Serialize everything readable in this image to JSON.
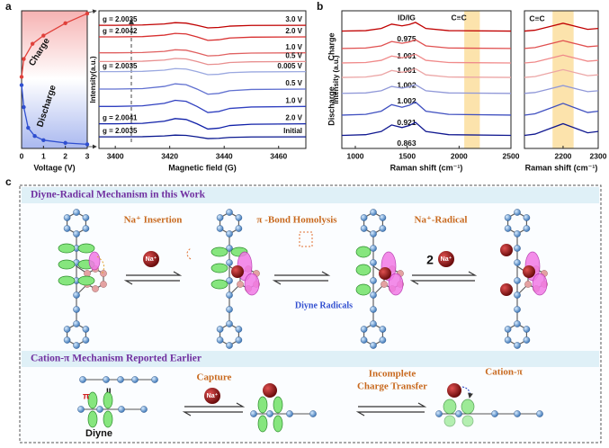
{
  "panel_labels": [
    "a",
    "b"
  ],
  "chart_data": [
    {
      "type": "line",
      "xlabel": "Voltage (V)",
      "xlim": [
        0,
        3
      ],
      "xticks": [
        0,
        1,
        2,
        3
      ],
      "ylim": [
        0,
        10
      ],
      "series": [
        {
          "name": "Charge",
          "color": "#e0403a",
          "x": [
            0,
            0.1,
            0.5,
            1,
            2,
            3
          ],
          "values": [
            5.2,
            6.5,
            7.6,
            8.2,
            9.1,
            9.8
          ]
        },
        {
          "name": "Discharge",
          "color": "#2f4fd0",
          "x": [
            0,
            0.1,
            0.3,
            0.6,
            1,
            2,
            3
          ],
          "values": [
            4.6,
            3.0,
            1.5,
            0.9,
            0.6,
            0.4,
            0.3
          ]
        }
      ]
    },
    {
      "type": "line",
      "xlabel": "Magnetic field (G)",
      "ylabel": "Intensity(a.u.)",
      "xlim": [
        3394,
        3470
      ],
      "xticks": [
        3400,
        3420,
        3440,
        3460
      ],
      "ylim": [
        0.5,
        10
      ],
      "x": [
        3394,
        3400,
        3410,
        3418,
        3422,
        3426,
        3430,
        3434,
        3438,
        3442,
        3450,
        3470
      ],
      "annotations": [
        "g = 2.0035",
        "g = 2.0042",
        "g = 2.0035",
        "g = 2.0041",
        "g = 2.0035"
      ],
      "series": [
        {
          "name": "3.0 V",
          "color": "#c00000",
          "values": [
            9,
            9,
            9.02,
            9.09,
            9.18,
            9.15,
            9,
            8.82,
            8.85,
            8.94,
            8.99,
            9
          ]
        },
        {
          "name": "2.0 V",
          "color": "#d83030",
          "values": [
            8.2,
            8.2,
            8.22,
            8.32,
            8.44,
            8.4,
            8.2,
            7.96,
            8,
            8.12,
            8.18,
            8.2
          ]
        },
        {
          "name": "1.0 V",
          "color": "#e06060",
          "values": [
            7.1,
            7.1,
            7.12,
            7.2,
            7.31,
            7.28,
            7.1,
            6.89,
            6.92,
            7.03,
            7.08,
            7.1
          ]
        },
        {
          "name": "0.5 V",
          "color": "#e89090",
          "values": [
            6.5,
            6.5,
            6.52,
            6.6,
            6.71,
            6.68,
            6.5,
            6.29,
            6.32,
            6.43,
            6.48,
            6.5
          ]
        },
        {
          "name": "0.005 V",
          "color": "#9aa8e0",
          "values": [
            5.8,
            5.8,
            5.82,
            5.9,
            6.01,
            5.98,
            5.8,
            5.59,
            5.62,
            5.73,
            5.78,
            5.8
          ]
        },
        {
          "name": "0.5 V",
          "color": "#6070d0",
          "values": [
            4.6,
            4.6,
            4.63,
            4.78,
            4.96,
            4.9,
            4.6,
            4.24,
            4.3,
            4.48,
            4.57,
            4.6
          ]
        },
        {
          "name": "1.0 V",
          "color": "#3040c0",
          "values": [
            3.4,
            3.4,
            3.44,
            3.61,
            3.82,
            3.75,
            3.4,
            2.98,
            3.05,
            3.26,
            3.36,
            3.4
          ]
        },
        {
          "name": "2.0 V",
          "color": "#1020a8",
          "values": [
            2.2,
            2.2,
            2.23,
            2.38,
            2.56,
            2.5,
            2.2,
            1.84,
            1.9,
            2.08,
            2.17,
            2.2
          ]
        },
        {
          "name": "Initial",
          "color": "#0a1890",
          "values": [
            1.3,
            1.3,
            1.31,
            1.36,
            1.42,
            1.4,
            1.3,
            1.18,
            1.2,
            1.26,
            1.29,
            1.3
          ]
        }
      ]
    },
    {
      "type": "line",
      "xlabel": "Raman shift (cm⁻¹)",
      "ylabel": "Intensity (a.u.)",
      "header": "ID/IG",
      "band_label": "C≡C",
      "groups": [
        "Charge",
        "Discharge"
      ],
      "xlim": [
        870,
        2500
      ],
      "xticks": [
        1000,
        1500,
        2000,
        2500
      ],
      "ylim": [
        0.5,
        10
      ],
      "band": [
        2050,
        2200
      ],
      "x": [
        870,
        1100,
        1250,
        1350,
        1450,
        1520,
        1580,
        1680,
        1900,
        2500
      ],
      "series": [
        {
          "name": "0.975",
          "color": "#c00000",
          "values": [
            8.6,
            8.63,
            8.78,
            9.08,
            8.96,
            9.05,
            9.2,
            8.78,
            8.63,
            8.6
          ]
        },
        {
          "name": "1.001",
          "color": "#e05050",
          "values": [
            7.4,
            7.43,
            7.58,
            7.88,
            7.76,
            7.85,
            8,
            7.58,
            7.43,
            7.4
          ]
        },
        {
          "name": "1.001",
          "color": "#f08a8a",
          "values": [
            6.4,
            6.43,
            6.58,
            6.88,
            6.76,
            6.85,
            7,
            6.58,
            6.43,
            6.4
          ]
        },
        {
          "name": "1.002",
          "color": "#eca6a6",
          "values": [
            5.4,
            5.43,
            5.58,
            5.88,
            5.76,
            5.85,
            6,
            5.58,
            5.43,
            5.4
          ]
        },
        {
          "name": "1.002",
          "color": "#9098d8",
          "values": [
            4.3,
            4.33,
            4.48,
            4.78,
            4.66,
            4.75,
            4.9,
            4.48,
            4.33,
            4.3
          ]
        },
        {
          "name": "0.921",
          "color": "#4050c0",
          "values": [
            2.8,
            2.85,
            3.07,
            3.52,
            3.34,
            3.48,
            3.7,
            3.07,
            2.85,
            2.8
          ]
        },
        {
          "name": "0.863",
          "color": "#101890",
          "values": [
            1.4,
            1.45,
            1.67,
            2.12,
            1.94,
            2.08,
            2.3,
            1.67,
            1.45,
            1.4
          ]
        }
      ]
    },
    {
      "type": "line",
      "title": "C≡C",
      "xlabel": "Raman shift (cm⁻¹)",
      "xlim": [
        2090,
        2300
      ],
      "xticks": [
        2200,
        2300
      ],
      "ylim": [
        0.5,
        10
      ],
      "band": [
        2170,
        2230
      ],
      "x": [
        2090,
        2120,
        2160,
        2200,
        2240,
        2270,
        2300
      ],
      "series": [
        {
          "color": "#c00000",
          "values": [
            8.6,
            8.66,
            8.9,
            9.14,
            8.9,
            8.72,
            8.78
          ]
        },
        {
          "color": "#e05050",
          "values": [
            7.4,
            7.46,
            7.7,
            7.94,
            7.7,
            7.52,
            7.58
          ]
        },
        {
          "color": "#f08a8a",
          "values": [
            6.4,
            6.46,
            6.7,
            6.94,
            6.7,
            6.52,
            6.58
          ]
        },
        {
          "color": "#eca6a6",
          "values": [
            5.4,
            5.46,
            5.7,
            5.94,
            5.7,
            5.52,
            5.58
          ]
        },
        {
          "color": "#9098d8",
          "values": [
            4.3,
            4.36,
            4.6,
            4.84,
            4.6,
            4.42,
            4.48
          ]
        },
        {
          "color": "#4050c0",
          "values": [
            2.8,
            2.89,
            3.25,
            3.61,
            3.25,
            2.98,
            3.07
          ]
        },
        {
          "color": "#101890",
          "values": [
            1.4,
            1.49,
            1.85,
            2.21,
            1.85,
            1.58,
            1.67
          ]
        }
      ]
    }
  ],
  "diagram": {
    "label": "c",
    "top": {
      "title": "Diyne-Radical Mechanism in this Work",
      "steps": [
        "Na⁺ Insertion",
        "π -Bond Homolysis",
        "Na⁺-Radical"
      ],
      "ion": "Na⁺",
      "count": "2",
      "note": "Diyne Radicals"
    },
    "bottom": {
      "title": "Cation-π Mechanism Reported Earlier",
      "steps": [
        "Capture",
        "Incomplete",
        "Charge Transfer",
        "Cation-π"
      ],
      "ion": "Na⁺",
      "molecule": "Diyne",
      "pi": "π"
    }
  }
}
